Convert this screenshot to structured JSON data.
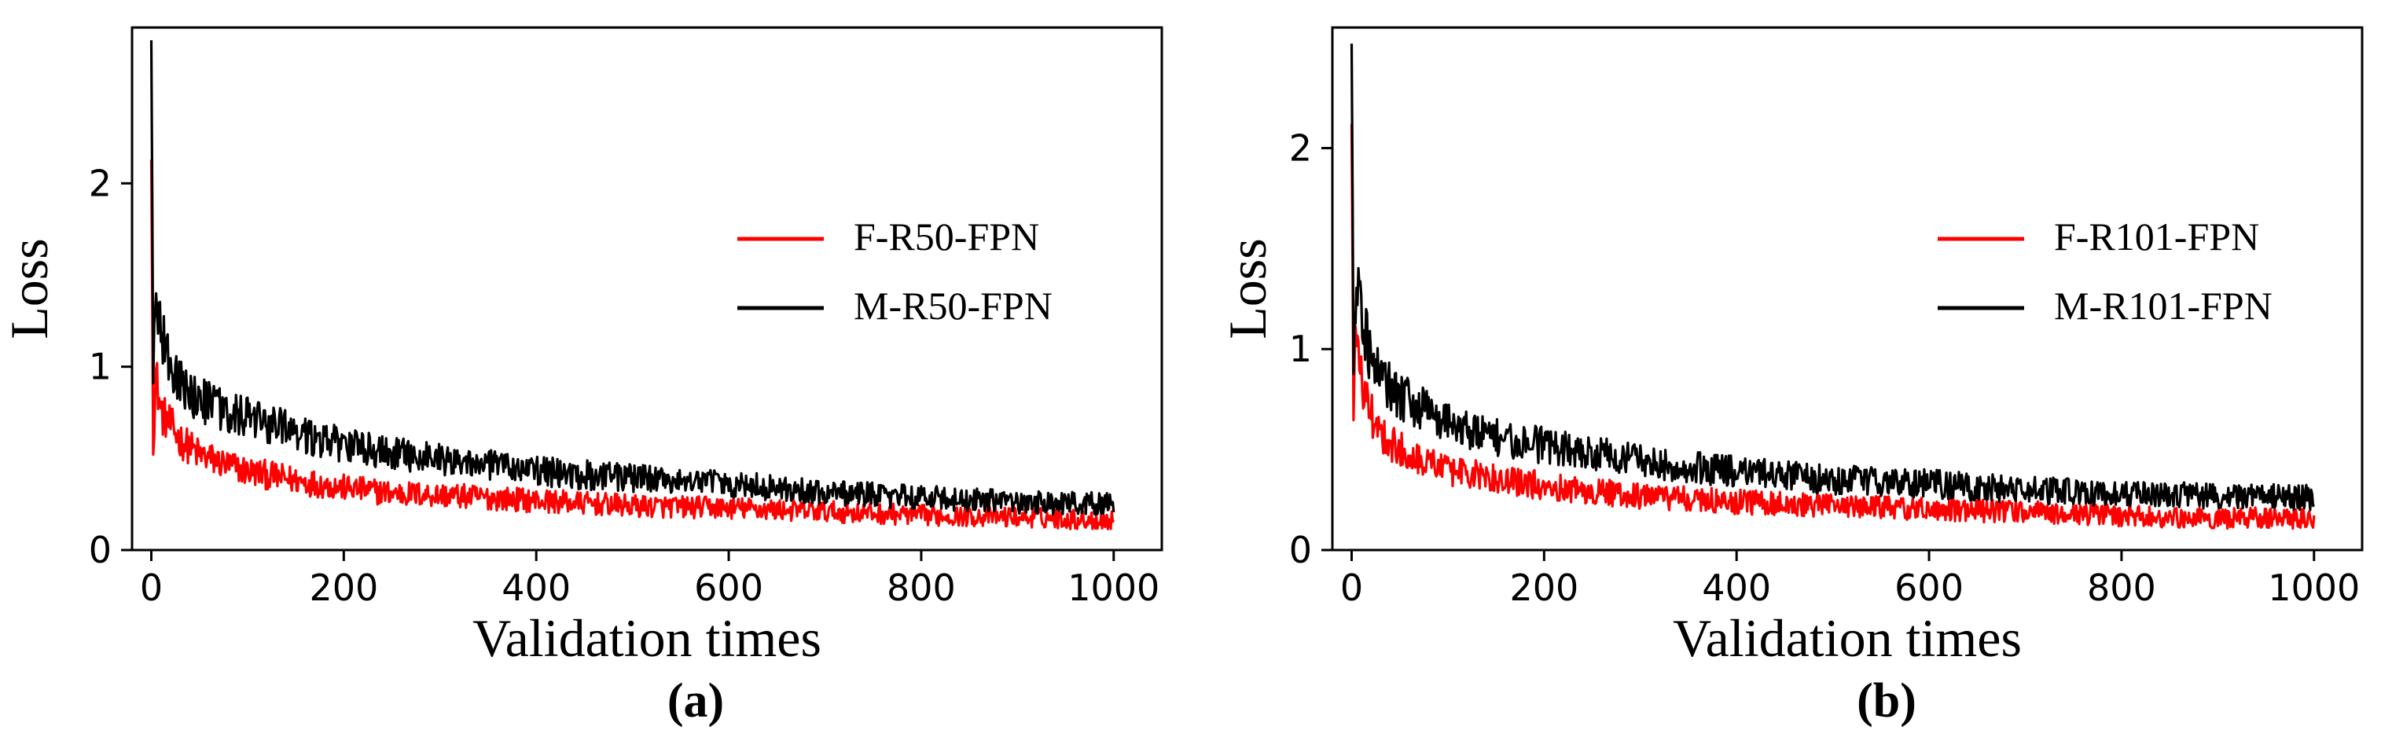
{
  "chart_data": [
    {
      "type": "line",
      "caption": "(a)",
      "xlabel": "Validation times",
      "ylabel": "Loss",
      "xlim": [
        -20,
        1050
      ],
      "ylim": [
        0,
        2.85
      ],
      "xticks": [
        0,
        200,
        400,
        600,
        800,
        1000
      ],
      "xtick_labels": [
        "0",
        "200",
        "400",
        "600",
        "800",
        "1000"
      ],
      "yticks": [
        0,
        1,
        2
      ],
      "ytick_labels": [
        "0",
        "1",
        "2"
      ],
      "legend_position": "center-right",
      "series": [
        {
          "name": "F-R50-FPN",
          "color": "#ff0000",
          "x": [
            0,
            2,
            5,
            10,
            20,
            30,
            50,
            75,
            100,
            150,
            200,
            250,
            300,
            400,
            500,
            600,
            700,
            800,
            900,
            1000
          ],
          "y": [
            2.13,
            0.62,
            0.95,
            0.75,
            0.68,
            0.6,
            0.52,
            0.47,
            0.43,
            0.38,
            0.34,
            0.31,
            0.3,
            0.27,
            0.24,
            0.23,
            0.21,
            0.19,
            0.18,
            0.16
          ]
        },
        {
          "name": "M-R50-FPN",
          "color": "#000000",
          "x": [
            0,
            2,
            5,
            10,
            20,
            30,
            50,
            75,
            100,
            150,
            200,
            250,
            300,
            400,
            500,
            600,
            700,
            800,
            900,
            1000
          ],
          "y": [
            2.78,
            1.05,
            1.3,
            1.18,
            1.0,
            0.9,
            0.82,
            0.76,
            0.72,
            0.64,
            0.57,
            0.53,
            0.5,
            0.43,
            0.39,
            0.36,
            0.31,
            0.29,
            0.26,
            0.25
          ]
        }
      ]
    },
    {
      "type": "line",
      "caption": "(b)",
      "xlabel": "Validation times",
      "ylabel": "Loss",
      "xlim": [
        -20,
        1050
      ],
      "ylim": [
        0,
        2.6
      ],
      "xticks": [
        0,
        200,
        400,
        600,
        800,
        1000
      ],
      "xtick_labels": [
        "0",
        "200",
        "400",
        "600",
        "800",
        "1000"
      ],
      "yticks": [
        0,
        1,
        2
      ],
      "ytick_labels": [
        "0",
        "1",
        "2"
      ],
      "legend_position": "center-right",
      "series": [
        {
          "name": "F-R101-FPN",
          "color": "#ff0000",
          "x": [
            0,
            2,
            5,
            10,
            20,
            30,
            50,
            75,
            100,
            150,
            200,
            250,
            300,
            400,
            500,
            600,
            700,
            800,
            900,
            1000
          ],
          "y": [
            2.12,
            0.75,
            1.1,
            0.85,
            0.68,
            0.58,
            0.5,
            0.45,
            0.4,
            0.35,
            0.32,
            0.29,
            0.27,
            0.24,
            0.22,
            0.2,
            0.19,
            0.17,
            0.16,
            0.16
          ]
        },
        {
          "name": "M-R101-FPN",
          "color": "#000000",
          "x": [
            0,
            2,
            5,
            10,
            20,
            30,
            50,
            75,
            100,
            150,
            200,
            250,
            300,
            400,
            500,
            600,
            700,
            800,
            900,
            1000
          ],
          "y": [
            2.52,
            1.0,
            1.35,
            1.2,
            0.95,
            0.85,
            0.76,
            0.7,
            0.64,
            0.56,
            0.52,
            0.48,
            0.44,
            0.39,
            0.35,
            0.33,
            0.3,
            0.28,
            0.27,
            0.26
          ]
        }
      ]
    }
  ]
}
